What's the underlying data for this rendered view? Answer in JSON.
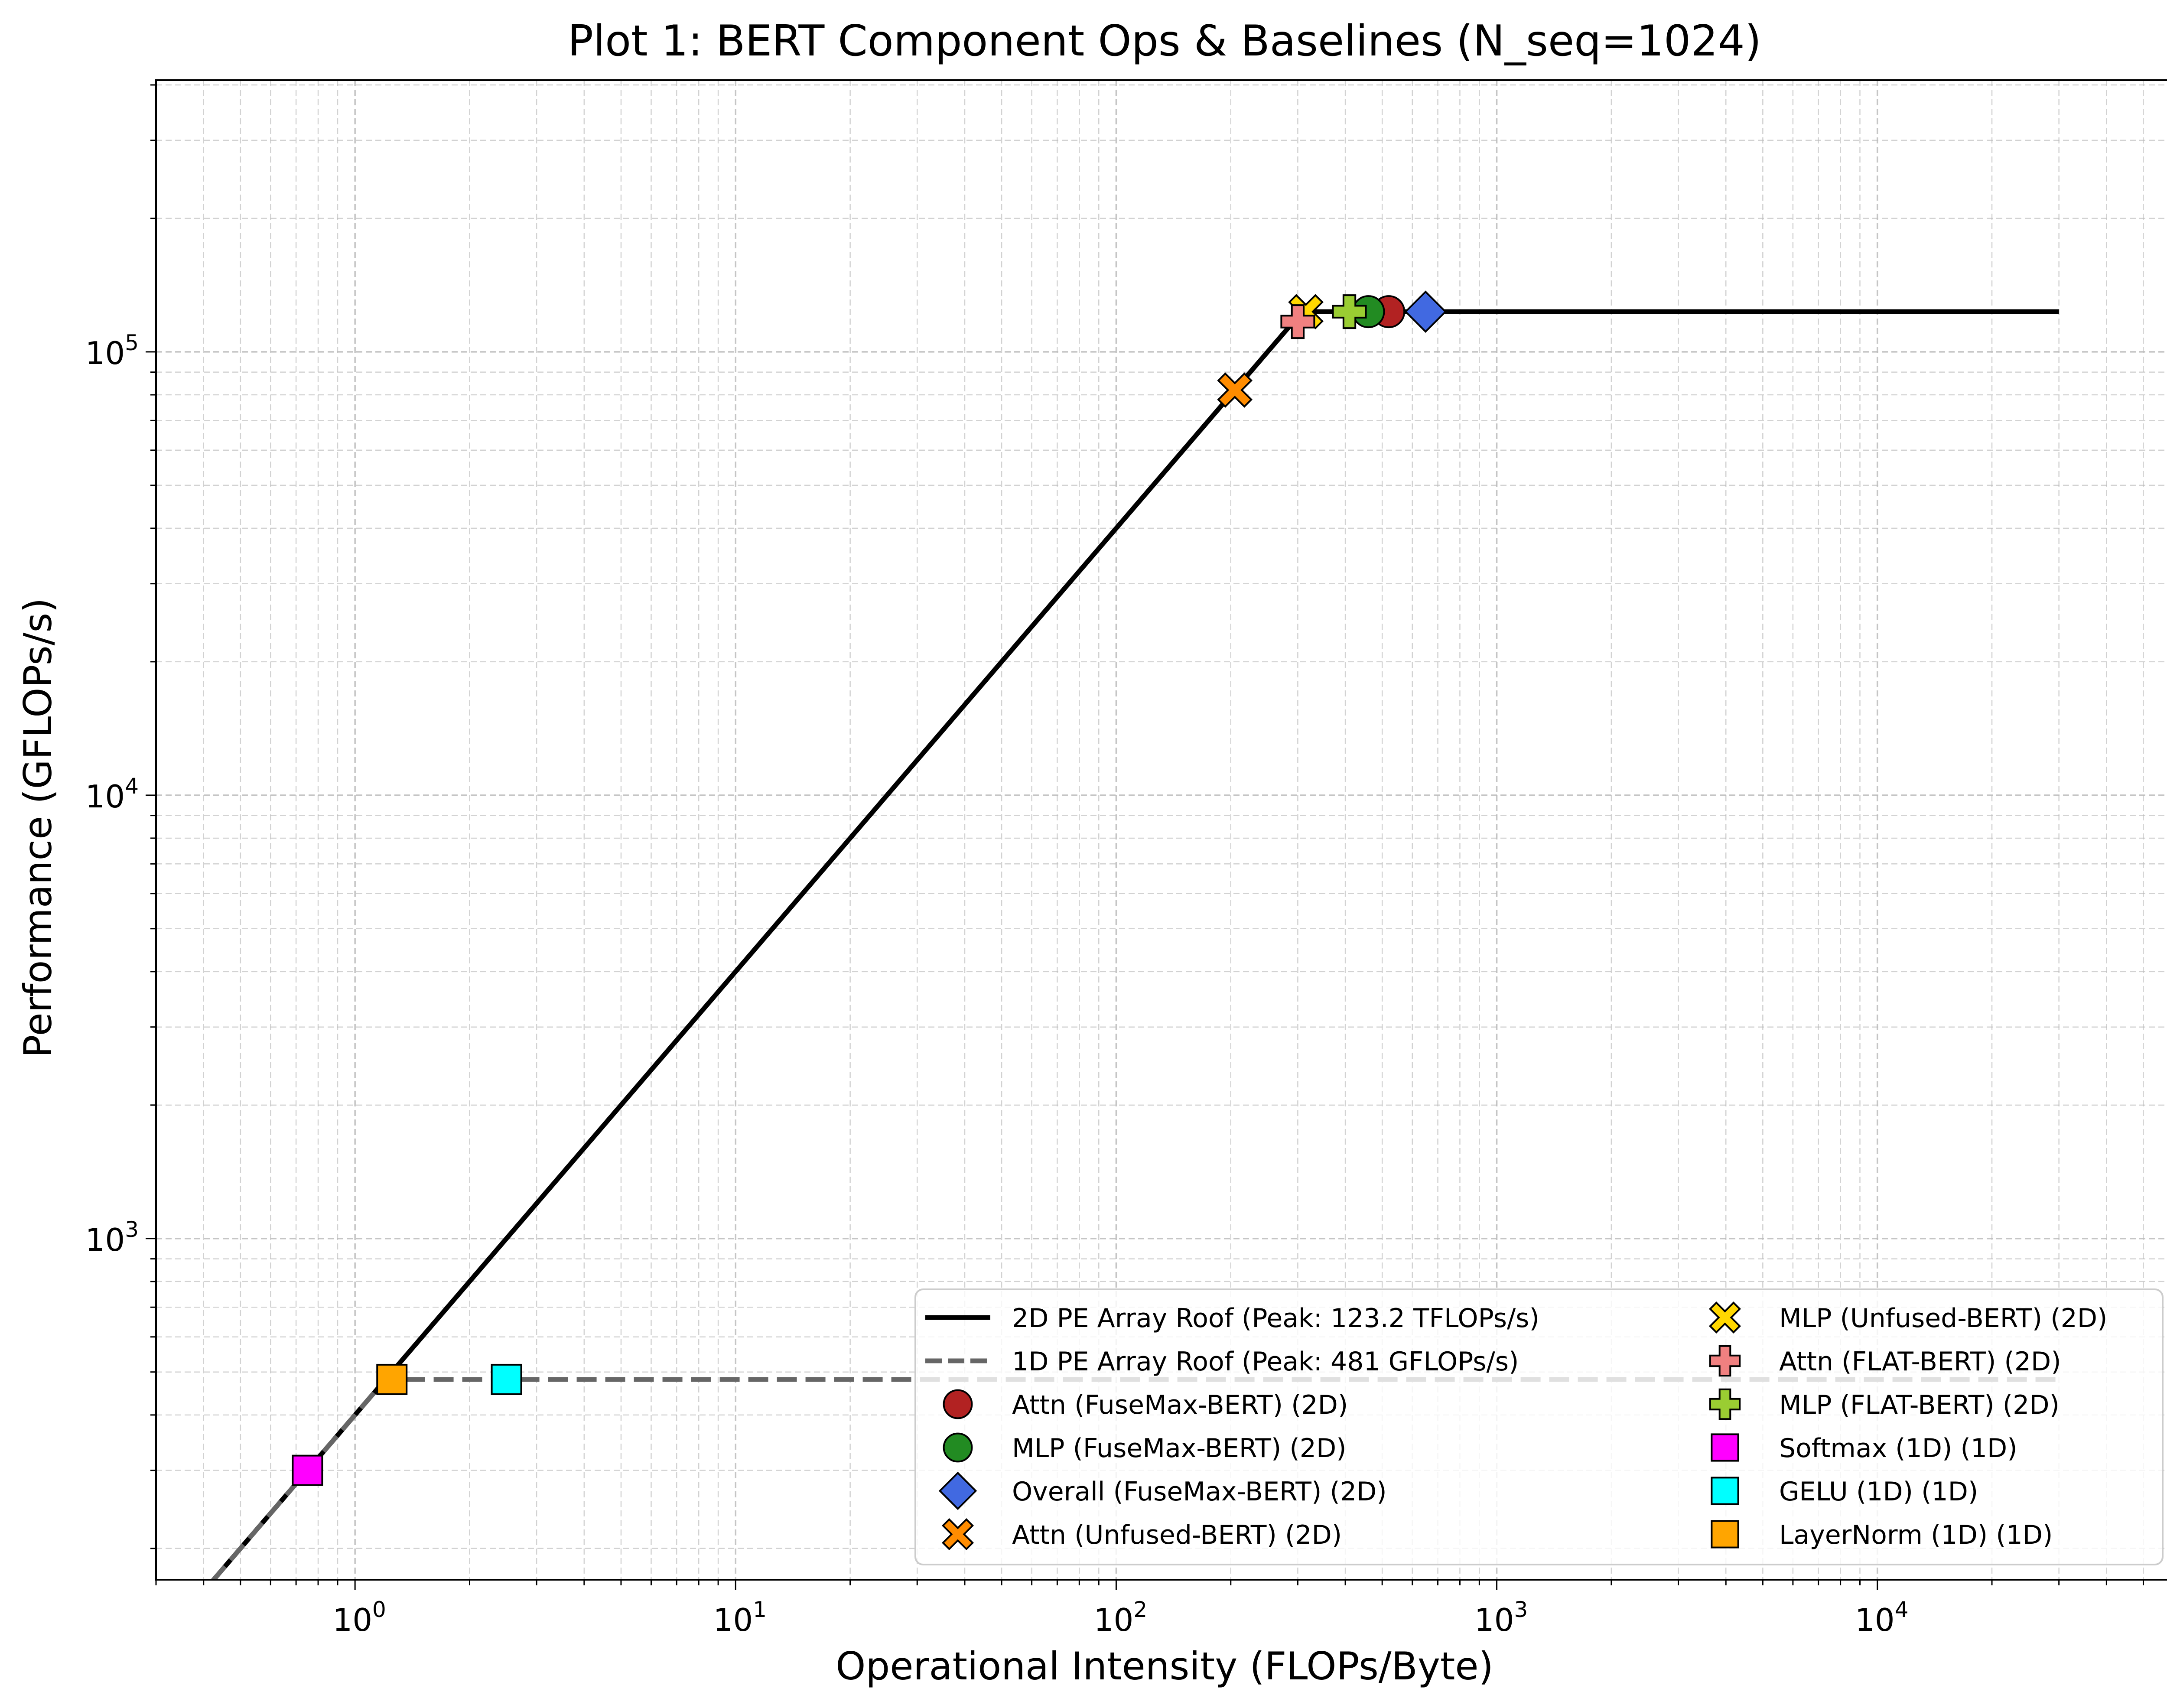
{
  "chart_data": {
    "type": "scatter",
    "title": "Plot 1: BERT Component Ops & Baselines (N_seq=1024)",
    "xlabel": "Operational Intensity (FLOPs/Byte)",
    "ylabel": "Performance (GFLOPs/s)",
    "xscale": "log",
    "yscale": "log",
    "xlim": [
      0.3,
      60000
    ],
    "ylim": [
      170,
      410000
    ],
    "grid": "both (major and minor), dashed",
    "legend_position": "lower-right",
    "x_ticks": [
      {
        "value": 1,
        "base": "10",
        "exp": "0"
      },
      {
        "value": 10,
        "base": "10",
        "exp": "1"
      },
      {
        "value": 100,
        "base": "10",
        "exp": "2"
      },
      {
        "value": 1000,
        "base": "10",
        "exp": "3"
      },
      {
        "value": 10000,
        "base": "10",
        "exp": "4"
      }
    ],
    "y_ticks": [
      {
        "value": 1000,
        "base": "10",
        "exp": "3"
      },
      {
        "value": 10000,
        "base": "10",
        "exp": "4"
      },
      {
        "value": 100000,
        "base": "10",
        "exp": "5"
      }
    ],
    "roofs": [
      {
        "name": "2D PE Array Roof (Peak: 123.2 TFLOPs/s)",
        "style": "solid",
        "color": "#000000",
        "bandwidth_gb_per_s": 400,
        "peak_gflops": 123200,
        "x_range": [
          0.3,
          30000
        ]
      },
      {
        "name": "1D PE Array Roof (Peak: 481 GFLOPs/s)",
        "style": "dashed",
        "color": "#666666",
        "bandwidth_gb_per_s": 400,
        "peak_gflops": 481,
        "x_range": [
          0.3,
          30000
        ]
      }
    ],
    "series": [
      {
        "name": "Attn (FuseMax-BERT) (2D)",
        "marker": "circle",
        "color": "#b22222",
        "x": 520,
        "y": 123200
      },
      {
        "name": "MLP (FuseMax-BERT) (2D)",
        "marker": "circle",
        "color": "#228b22",
        "x": 460,
        "y": 123200
      },
      {
        "name": "Overall (FuseMax-BERT) (2D)",
        "marker": "diamond",
        "color": "#4169e1",
        "x": 650,
        "y": 123200
      },
      {
        "name": "Attn (Unfused-BERT) (2D)",
        "marker": "x-filled",
        "color": "#ff8c00",
        "x": 205,
        "y": 82000
      },
      {
        "name": "MLP (Unfused-BERT) (2D)",
        "marker": "x-filled",
        "color": "#ffd700",
        "x": 315,
        "y": 123200
      },
      {
        "name": "Attn (FLAT-BERT) (2D)",
        "marker": "plus-filled",
        "color": "#f08080",
        "x": 300,
        "y": 117000
      },
      {
        "name": "MLP (FLAT-BERT) (2D)",
        "marker": "plus-filled",
        "color": "#9acd32",
        "x": 410,
        "y": 123200
      },
      {
        "name": "Softmax (1D) (1D)",
        "marker": "square",
        "color": "#ff00ff",
        "x": 0.75,
        "y": 300
      },
      {
        "name": "GELU (1D) (1D)",
        "marker": "square",
        "color": "#00ffff",
        "x": 2.5,
        "y": 481
      },
      {
        "name": "LayerNorm (1D) (1D)",
        "marker": "square",
        "color": "#ffa500",
        "x": 1.25,
        "y": 481
      }
    ]
  }
}
